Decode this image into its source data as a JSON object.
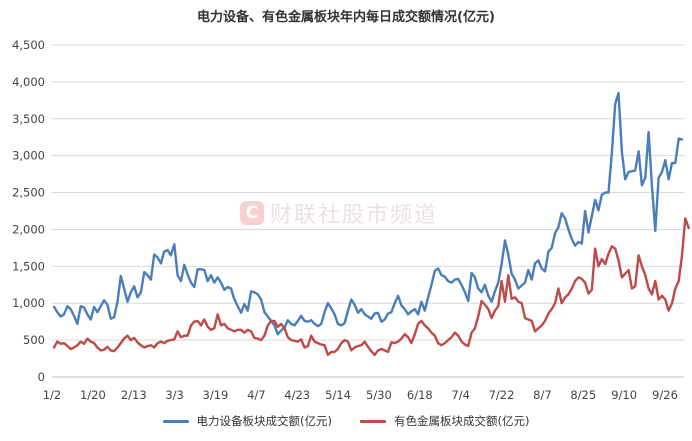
{
  "title": "电力设备、有色金属板块年内每日成交额情况(亿元)",
  "watermark": {
    "logo_letter": "C",
    "text": "财联社股市频道"
  },
  "colors": {
    "series1": "#4a7ebb",
    "series2": "#be4b48",
    "grid": "#d9d9d9",
    "axis": "#bfbfbf"
  },
  "chart_data": {
    "type": "line",
    "title": "电力设备、有色金属板块年内每日成交额情况(亿元)",
    "xlabel": "",
    "ylabel": "",
    "ylim": [
      0,
      4500
    ],
    "yticks": [
      0,
      500,
      1000,
      1500,
      2000,
      2500,
      3000,
      3500,
      4000,
      4500
    ],
    "ytick_labels": [
      "0",
      "500",
      "1,000",
      "1,500",
      "2,000",
      "2,500",
      "3,000",
      "3,500",
      "4,000",
      "4,500"
    ],
    "xtick_labels": [
      "1/2",
      "1/20",
      "2/13",
      "3/3",
      "3/19",
      "4/7",
      "4/23",
      "5/14",
      "5/30",
      "6/18",
      "7/4",
      "7/22",
      "8/7",
      "8/25",
      "9/10",
      "9/26"
    ],
    "grid": "horizontal",
    "legend_position": "bottom",
    "series": [
      {
        "name": "电力设备板块成交额(亿元)",
        "values": [
          950,
          880,
          820,
          850,
          960,
          920,
          830,
          720,
          960,
          940,
          850,
          780,
          950,
          880,
          960,
          1040,
          980,
          790,
          810,
          1020,
          1370,
          1200,
          1020,
          1150,
          1230,
          1080,
          1150,
          1420,
          1380,
          1320,
          1660,
          1620,
          1540,
          1700,
          1720,
          1650,
          1800,
          1380,
          1300,
          1520,
          1390,
          1280,
          1220,
          1460,
          1460,
          1450,
          1300,
          1380,
          1280,
          1350,
          1280,
          1180,
          1220,
          1200,
          1050,
          960,
          870,
          990,
          900,
          1160,
          1150,
          1120,
          1050,
          880,
          820,
          760,
          700,
          580,
          630,
          670,
          770,
          720,
          700,
          760,
          830,
          760,
          750,
          770,
          720,
          690,
          720,
          880,
          1000,
          930,
          850,
          720,
          700,
          730,
          900,
          1050,
          980,
          870,
          920,
          850,
          820,
          790,
          860,
          870,
          750,
          780,
          860,
          880,
          1000,
          1100,
          970,
          920,
          850,
          890,
          920,
          850,
          1020,
          900,
          1080,
          1250,
          1440,
          1470,
          1380,
          1360,
          1300,
          1280,
          1320,
          1330,
          1250,
          1150,
          1030,
          1410,
          1350,
          1200,
          1150,
          1250,
          1100,
          1020,
          1160,
          1280,
          1530,
          1850,
          1660,
          1400,
          1320,
          1200,
          1240,
          1280,
          1450,
          1320,
          1540,
          1580,
          1470,
          1430,
          1700,
          1750,
          1950,
          2030,
          2220,
          2150,
          2000,
          1870,
          1780,
          1830,
          1810,
          2250,
          1960,
          2180,
          2400,
          2260,
          2470,
          2500,
          2500,
          3050,
          3700,
          3850,
          3050,
          2680,
          2780,
          2790,
          2800,
          3060,
          2600,
          2700,
          3320,
          2600,
          1980,
          2700,
          2780,
          2940,
          2680,
          2900,
          2900,
          3230,
          3220
        ]
      },
      {
        "name": "有色金属板块成交额(亿元)",
        "values": [
          400,
          480,
          450,
          460,
          420,
          380,
          400,
          430,
          480,
          450,
          520,
          480,
          460,
          400,
          360,
          370,
          410,
          360,
          350,
          400,
          460,
          520,
          560,
          500,
          530,
          470,
          430,
          400,
          420,
          430,
          400,
          460,
          480,
          460,
          490,
          500,
          510,
          620,
          540,
          560,
          560,
          700,
          750,
          760,
          700,
          780,
          680,
          640,
          660,
          850,
          700,
          720,
          660,
          640,
          620,
          640,
          640,
          600,
          640,
          620,
          530,
          520,
          500,
          560,
          700,
          760,
          760,
          680,
          720,
          660,
          540,
          500,
          490,
          480,
          510,
          400,
          420,
          560,
          480,
          460,
          440,
          430,
          300,
          340,
          340,
          380,
          460,
          500,
          480,
          360,
          400,
          420,
          430,
          480,
          410,
          350,
          300,
          360,
          380,
          360,
          340,
          470,
          460,
          480,
          520,
          580,
          540,
          460,
          580,
          720,
          760,
          700,
          660,
          600,
          560,
          460,
          430,
          460,
          500,
          540,
          600,
          560,
          480,
          440,
          420,
          600,
          660,
          820,
          1030,
          980,
          920,
          800,
          900,
          960,
          1300,
          1020,
          1380,
          1060,
          1080,
          1020,
          1000,
          800,
          780,
          760,
          620,
          660,
          700,
          760,
          860,
          920,
          1000,
          1200,
          1000,
          1080,
          1120,
          1200,
          1300,
          1350,
          1330,
          1280,
          1130,
          1180,
          1740,
          1500,
          1600,
          1530,
          1670,
          1770,
          1740,
          1580,
          1350,
          1400,
          1450,
          1200,
          1230,
          1650,
          1500,
          1380,
          1200,
          1120,
          1300,
          1050,
          1100,
          1050,
          900,
          1000,
          1200,
          1300,
          1650,
          2150,
          2020
        ]
      }
    ]
  }
}
